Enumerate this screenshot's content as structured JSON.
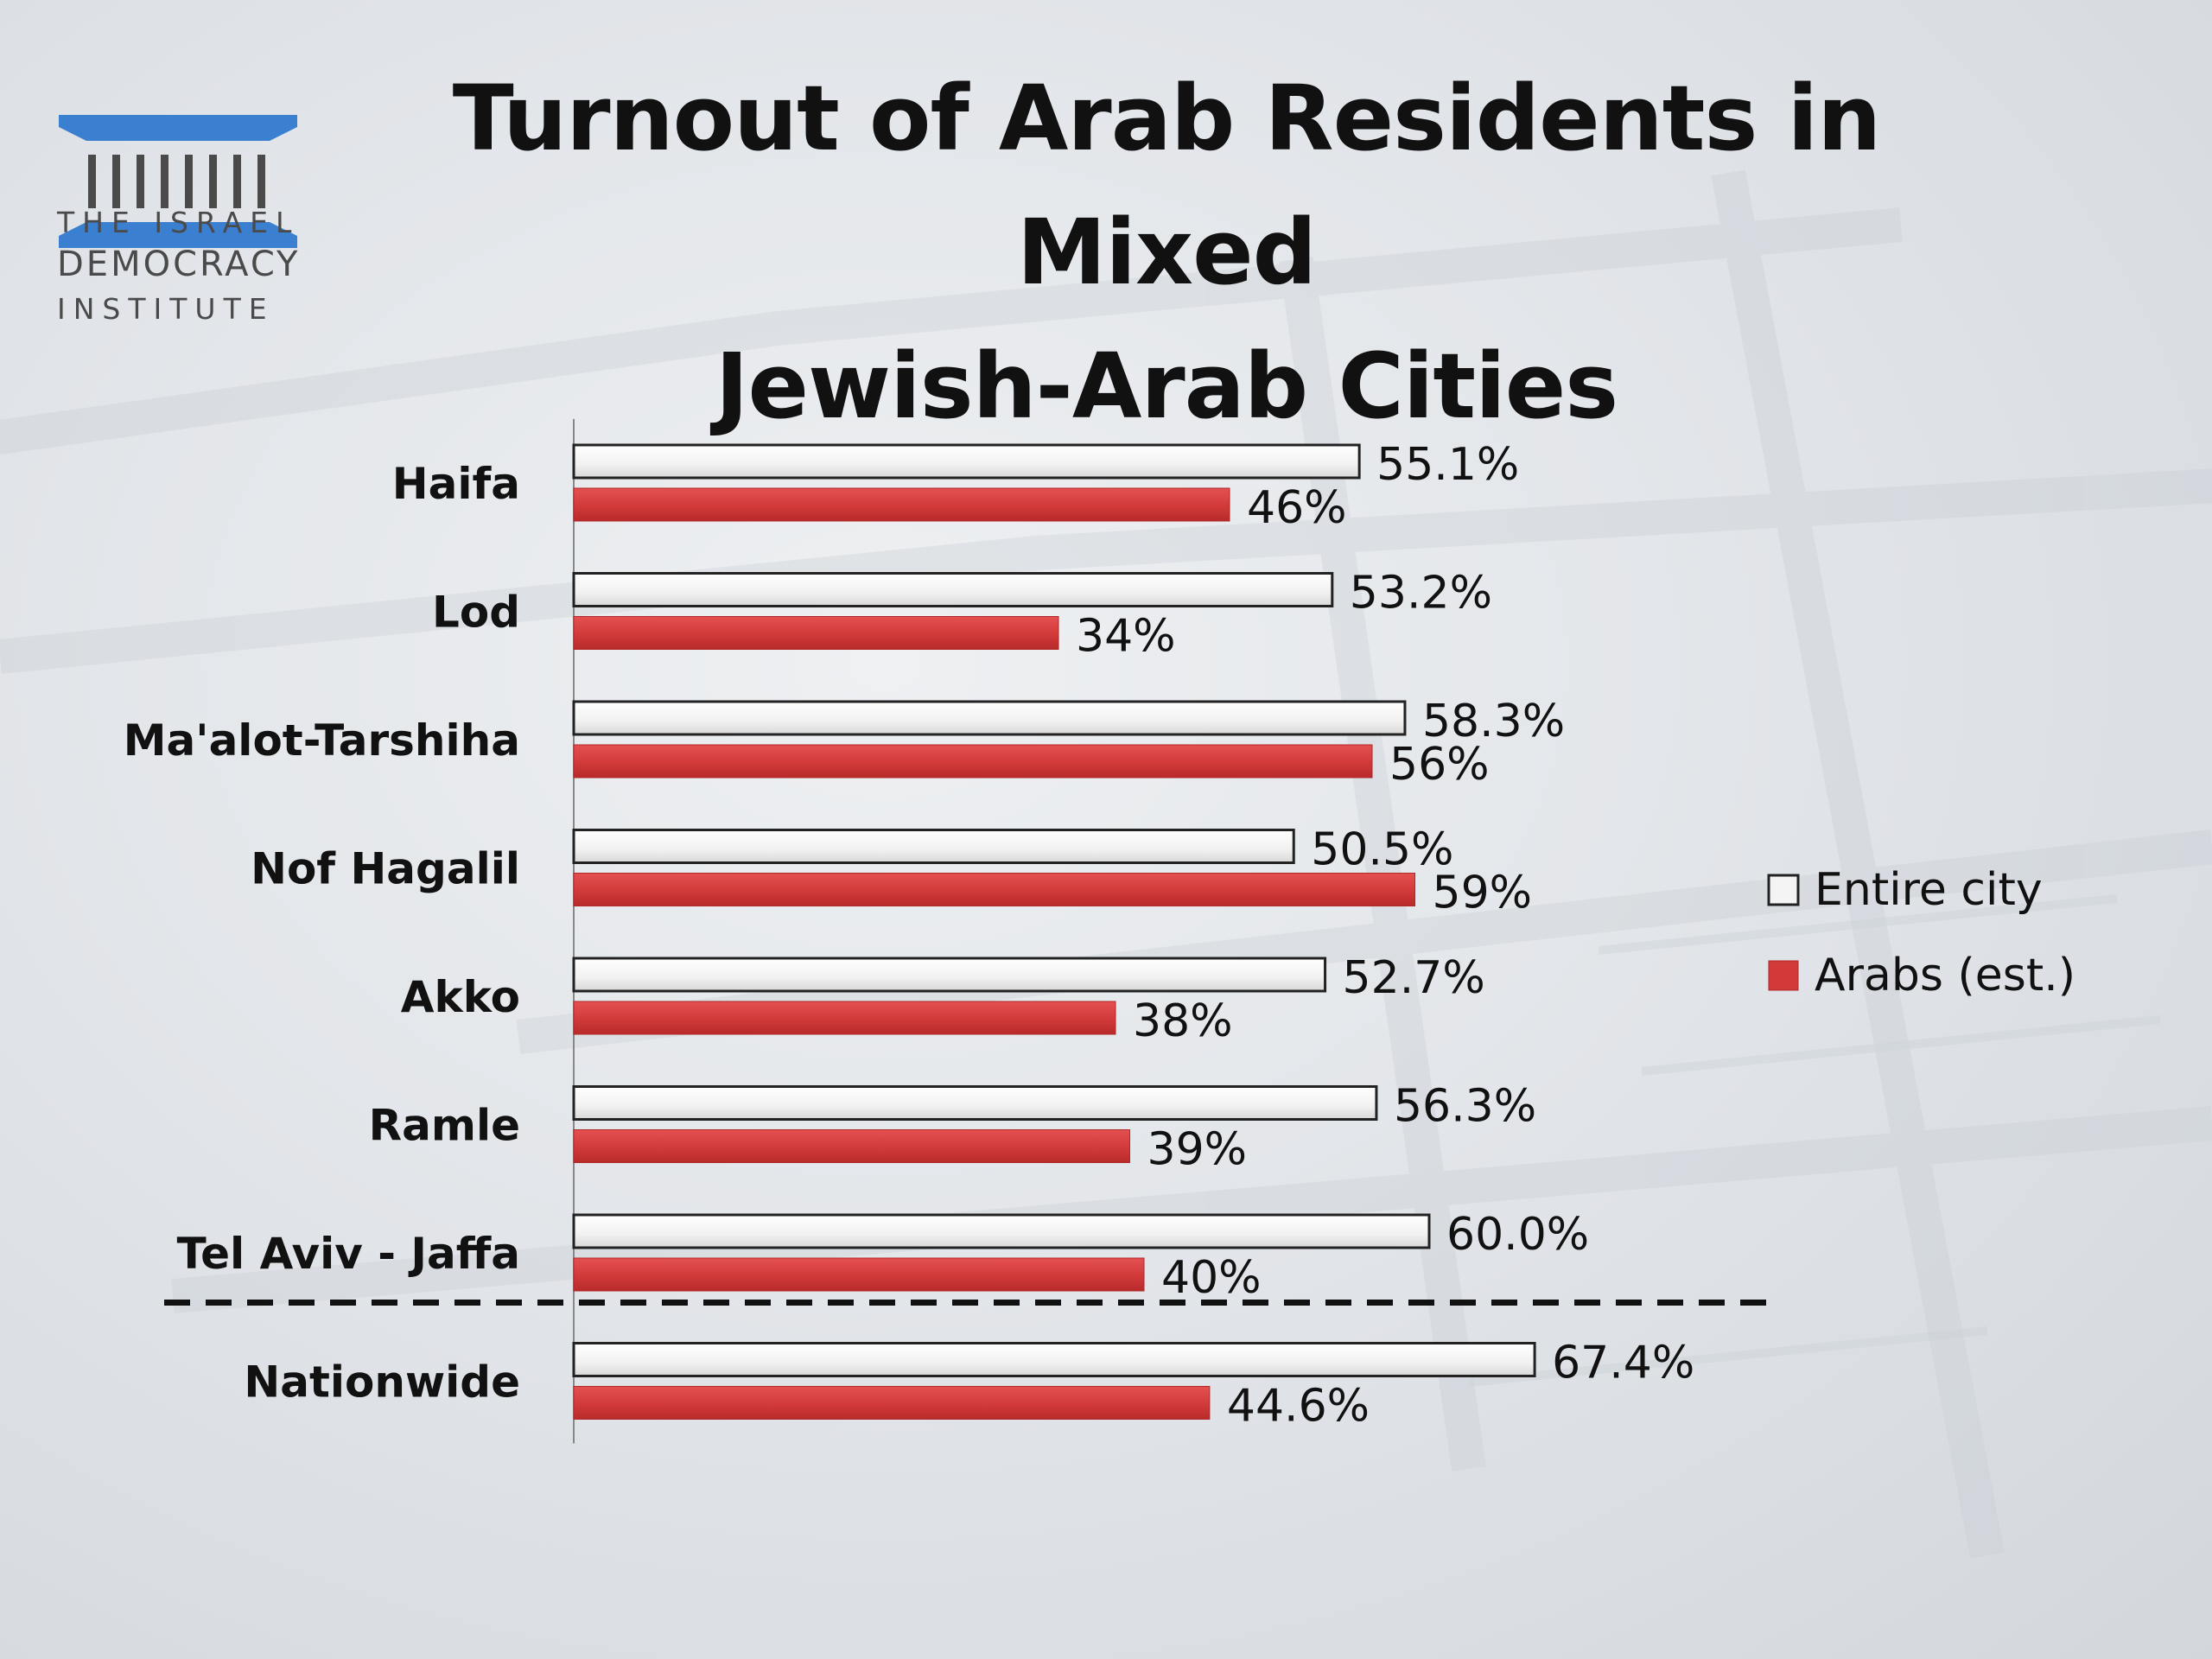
{
  "logo": {
    "line1": "THE ISRAEL",
    "line2": "DEMOCRACY",
    "line3": "INSTITUTE",
    "color": "#3b7fd0"
  },
  "chart_data": {
    "type": "bar",
    "orientation": "horizontal",
    "title": "Turnout of Arab Residents in Mixed Jewish-Arab Cities",
    "categories": [
      "Haifa",
      "Lod",
      "Ma'alot-Tarshiha",
      "Nof Hagalil",
      "Akko",
      "Ramle",
      "Tel Aviv - Jaffa",
      "Nationwide"
    ],
    "series": [
      {
        "name": "Entire city",
        "values": [
          55.1,
          53.2,
          58.3,
          50.5,
          52.7,
          56.3,
          60.0,
          67.4
        ],
        "labels": [
          "55.1%",
          "53.2%",
          "58.3%",
          "50.5%",
          "52.7%",
          "56.3%",
          "60.0%",
          "67.4%"
        ],
        "color": "#f4f4f4"
      },
      {
        "name": "Arabs (est.)",
        "values": [
          46,
          34,
          56,
          59,
          38,
          39,
          40,
          44.6
        ],
        "labels": [
          "46%",
          "34%",
          "56%",
          "59%",
          "38%",
          "39%",
          "40%",
          "44.6%"
        ],
        "color": "#d23a3a"
      }
    ],
    "xlim": [
      0,
      100
    ],
    "legend_position": "right",
    "separator": "dashed line between Tel Aviv - Jaffa and Nationwide"
  }
}
